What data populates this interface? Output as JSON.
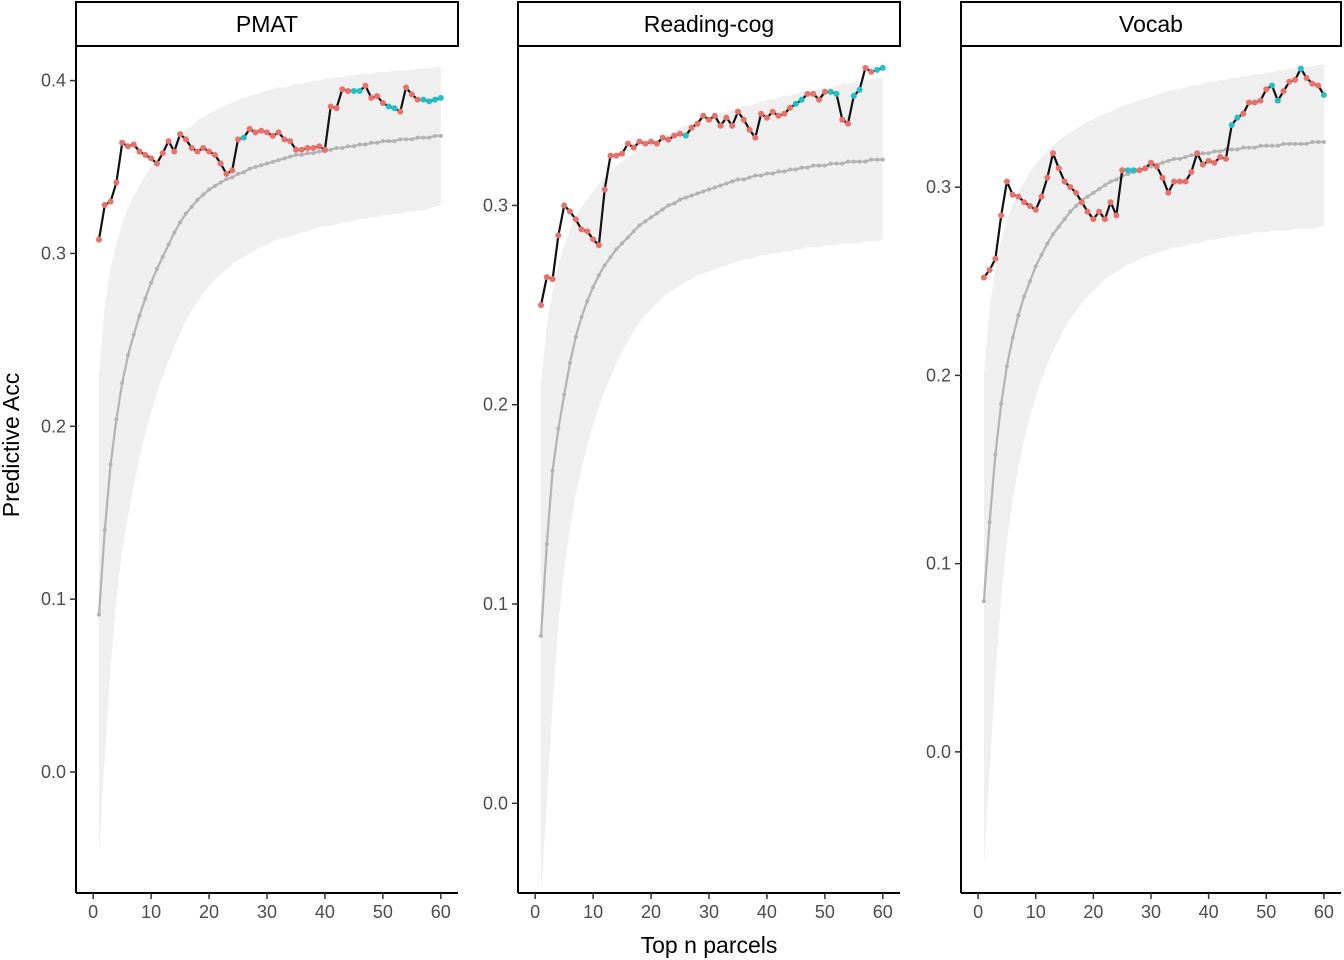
{
  "xlabel": "Top n parcels",
  "ylabel": "Predictive Acc",
  "colors": {
    "observed_line": "#111111",
    "point_a": "#e8716a",
    "point_b": "#22bfc4",
    "null_line": "#b3b3b3",
    "null_band": "#efefef"
  },
  "chart_data": [
    {
      "type": "line",
      "title": "PMAT",
      "xlim": [
        0,
        60
      ],
      "ylim": [
        -0.07,
        0.42
      ],
      "xticks": [
        0,
        10,
        20,
        30,
        40,
        50,
        60
      ],
      "yticks": [
        0.0,
        0.1,
        0.2,
        0.3,
        0.4
      ],
      "x": [
        1,
        2,
        3,
        4,
        5,
        6,
        7,
        8,
        9,
        10,
        11,
        12,
        13,
        14,
        15,
        16,
        17,
        18,
        19,
        20,
        21,
        22,
        23,
        24,
        25,
        26,
        27,
        28,
        29,
        30,
        31,
        32,
        33,
        34,
        35,
        36,
        37,
        38,
        39,
        40,
        41,
        42,
        43,
        44,
        45,
        46,
        47,
        48,
        49,
        50,
        51,
        52,
        53,
        54,
        55,
        56,
        57,
        58,
        59,
        60
      ],
      "observed": [
        0.308,
        0.328,
        0.33,
        0.341,
        0.364,
        0.362,
        0.363,
        0.359,
        0.357,
        0.355,
        0.352,
        0.358,
        0.365,
        0.359,
        0.369,
        0.366,
        0.361,
        0.359,
        0.361,
        0.359,
        0.357,
        0.352,
        0.346,
        0.348,
        0.366,
        0.367,
        0.372,
        0.37,
        0.371,
        0.37,
        0.368,
        0.37,
        0.366,
        0.365,
        0.36,
        0.36,
        0.361,
        0.361,
        0.362,
        0.36,
        0.385,
        0.384,
        0.395,
        0.394,
        0.394,
        0.394,
        0.397,
        0.39,
        0.391,
        0.387,
        0.385,
        0.384,
        0.382,
        0.396,
        0.392,
        0.389,
        0.389,
        0.388,
        0.389,
        0.39
      ],
      "point_group": [
        "a",
        "a",
        "a",
        "a",
        "a",
        "a",
        "a",
        "a",
        "a",
        "a",
        "a",
        "a",
        "a",
        "a",
        "a",
        "a",
        "a",
        "a",
        "a",
        "a",
        "a",
        "a",
        "a",
        "a",
        "a",
        "b",
        "a",
        "a",
        "a",
        "a",
        "a",
        "a",
        "a",
        "a",
        "a",
        "a",
        "a",
        "a",
        "a",
        "a",
        "a",
        "a",
        "a",
        "a",
        "b",
        "b",
        "a",
        "a",
        "a",
        "a",
        "b",
        "b",
        "a",
        "a",
        "a",
        "a",
        "b",
        "b",
        "b",
        "b"
      ],
      "null_mean": [
        0.091,
        0.14,
        0.178,
        0.204,
        0.225,
        0.241,
        0.253,
        0.264,
        0.274,
        0.283,
        0.291,
        0.298,
        0.305,
        0.312,
        0.318,
        0.323,
        0.327,
        0.331,
        0.334,
        0.337,
        0.339,
        0.341,
        0.343,
        0.344,
        0.346,
        0.347,
        0.349,
        0.35,
        0.351,
        0.352,
        0.353,
        0.354,
        0.355,
        0.356,
        0.357,
        0.357,
        0.358,
        0.358,
        0.359,
        0.359,
        0.36,
        0.361,
        0.361,
        0.362,
        0.362,
        0.363,
        0.363,
        0.364,
        0.364,
        0.365,
        0.365,
        0.365,
        0.366,
        0.366,
        0.366,
        0.367,
        0.367,
        0.367,
        0.368,
        0.368
      ],
      "null_upper": [
        0.23,
        0.27,
        0.292,
        0.305,
        0.318,
        0.326,
        0.333,
        0.339,
        0.345,
        0.35,
        0.355,
        0.359,
        0.363,
        0.366,
        0.369,
        0.372,
        0.374,
        0.377,
        0.379,
        0.381,
        0.383,
        0.384,
        0.386,
        0.387,
        0.389,
        0.39,
        0.391,
        0.392,
        0.393,
        0.394,
        0.395,
        0.396,
        0.396,
        0.397,
        0.398,
        0.398,
        0.399,
        0.4,
        0.4,
        0.401,
        0.401,
        0.402,
        0.402,
        0.403,
        0.403,
        0.404,
        0.404,
        0.404,
        0.405,
        0.405,
        0.405,
        0.406,
        0.406,
        0.406,
        0.406,
        0.407,
        0.407,
        0.407,
        0.408,
        0.408
      ],
      "null_lower": [
        -0.048,
        0.01,
        0.06,
        0.1,
        0.128,
        0.148,
        0.165,
        0.182,
        0.196,
        0.208,
        0.219,
        0.229,
        0.238,
        0.246,
        0.254,
        0.261,
        0.267,
        0.272,
        0.277,
        0.281,
        0.285,
        0.288,
        0.291,
        0.294,
        0.296,
        0.298,
        0.3,
        0.302,
        0.304,
        0.305,
        0.307,
        0.308,
        0.309,
        0.31,
        0.311,
        0.312,
        0.313,
        0.314,
        0.315,
        0.316,
        0.316,
        0.317,
        0.318,
        0.318,
        0.319,
        0.32,
        0.32,
        0.321,
        0.321,
        0.322,
        0.322,
        0.323,
        0.323,
        0.324,
        0.324,
        0.325,
        0.325,
        0.326,
        0.327,
        0.328
      ]
    },
    {
      "type": "line",
      "title": "Reading-cog",
      "xlim": [
        0,
        60
      ],
      "ylim": [
        -0.045,
        0.38
      ],
      "xticks": [
        0,
        10,
        20,
        30,
        40,
        50,
        60
      ],
      "yticks": [
        0.0,
        0.1,
        0.2,
        0.3
      ],
      "x": [
        1,
        2,
        3,
        4,
        5,
        6,
        7,
        8,
        9,
        10,
        11,
        12,
        13,
        14,
        15,
        16,
        17,
        18,
        19,
        20,
        21,
        22,
        23,
        24,
        25,
        26,
        27,
        28,
        29,
        30,
        31,
        32,
        33,
        34,
        35,
        36,
        37,
        38,
        39,
        40,
        41,
        42,
        43,
        44,
        45,
        46,
        47,
        48,
        49,
        50,
        51,
        52,
        53,
        54,
        55,
        56,
        57,
        58,
        59,
        60
      ],
      "observed": [
        0.25,
        0.264,
        0.263,
        0.285,
        0.3,
        0.297,
        0.293,
        0.288,
        0.287,
        0.283,
        0.28,
        0.308,
        0.325,
        0.325,
        0.326,
        0.331,
        0.329,
        0.332,
        0.331,
        0.332,
        0.331,
        0.334,
        0.333,
        0.335,
        0.336,
        0.335,
        0.339,
        0.341,
        0.345,
        0.343,
        0.345,
        0.34,
        0.344,
        0.34,
        0.347,
        0.343,
        0.338,
        0.334,
        0.346,
        0.344,
        0.347,
        0.345,
        0.346,
        0.349,
        0.351,
        0.353,
        0.356,
        0.356,
        0.353,
        0.357,
        0.357,
        0.356,
        0.343,
        0.341,
        0.355,
        0.358,
        0.369,
        0.367,
        0.368,
        0.369
      ],
      "point_group": [
        "a",
        "a",
        "a",
        "a",
        "a",
        "a",
        "a",
        "a",
        "a",
        "a",
        "a",
        "a",
        "a",
        "a",
        "a",
        "a",
        "a",
        "a",
        "a",
        "a",
        "a",
        "a",
        "a",
        "a",
        "a",
        "b",
        "a",
        "a",
        "a",
        "a",
        "a",
        "a",
        "a",
        "a",
        "a",
        "a",
        "a",
        "a",
        "a",
        "a",
        "a",
        "a",
        "a",
        "a",
        "b",
        "b",
        "a",
        "a",
        "a",
        "a",
        "b",
        "b",
        "a",
        "a",
        "b",
        "b",
        "a",
        "a",
        "b",
        "b"
      ],
      "null_mean": [
        0.084,
        0.13,
        0.167,
        0.188,
        0.205,
        0.221,
        0.234,
        0.244,
        0.252,
        0.259,
        0.265,
        0.27,
        0.274,
        0.278,
        0.281,
        0.284,
        0.287,
        0.29,
        0.292,
        0.294,
        0.296,
        0.298,
        0.3,
        0.301,
        0.303,
        0.304,
        0.305,
        0.306,
        0.307,
        0.308,
        0.309,
        0.31,
        0.311,
        0.312,
        0.313,
        0.313,
        0.314,
        0.315,
        0.315,
        0.316,
        0.316,
        0.317,
        0.317,
        0.318,
        0.318,
        0.319,
        0.319,
        0.32,
        0.32,
        0.32,
        0.321,
        0.321,
        0.321,
        0.322,
        0.322,
        0.322,
        0.322,
        0.323,
        0.323,
        0.323
      ],
      "null_upper": [
        0.21,
        0.24,
        0.257,
        0.27,
        0.28,
        0.288,
        0.294,
        0.299,
        0.303,
        0.307,
        0.311,
        0.314,
        0.317,
        0.32,
        0.322,
        0.324,
        0.326,
        0.328,
        0.33,
        0.332,
        0.333,
        0.335,
        0.336,
        0.337,
        0.339,
        0.34,
        0.341,
        0.342,
        0.343,
        0.344,
        0.345,
        0.346,
        0.347,
        0.348,
        0.349,
        0.35,
        0.35,
        0.351,
        0.352,
        0.353,
        0.353,
        0.354,
        0.355,
        0.355,
        0.356,
        0.357,
        0.357,
        0.358,
        0.358,
        0.359,
        0.359,
        0.36,
        0.361,
        0.361,
        0.362,
        0.362,
        0.363,
        0.363,
        0.364,
        0.364
      ],
      "null_lower": [
        -0.045,
        0.0,
        0.05,
        0.09,
        0.118,
        0.138,
        0.155,
        0.168,
        0.18,
        0.19,
        0.199,
        0.207,
        0.214,
        0.221,
        0.227,
        0.232,
        0.237,
        0.241,
        0.245,
        0.248,
        0.251,
        0.254,
        0.256,
        0.258,
        0.26,
        0.262,
        0.263,
        0.265,
        0.266,
        0.267,
        0.268,
        0.269,
        0.27,
        0.271,
        0.272,
        0.273,
        0.273,
        0.274,
        0.275,
        0.275,
        0.276,
        0.276,
        0.277,
        0.277,
        0.278,
        0.278,
        0.279,
        0.279,
        0.279,
        0.28,
        0.28,
        0.28,
        0.281,
        0.281,
        0.281,
        0.281,
        0.282,
        0.282,
        0.282,
        0.283
      ]
    },
    {
      "type": "line",
      "title": "Vocab",
      "xlim": [
        0,
        60
      ],
      "ylim": [
        -0.075,
        0.375
      ],
      "xticks": [
        0,
        10,
        20,
        30,
        40,
        50,
        60
      ],
      "yticks": [
        0.0,
        0.1,
        0.2,
        0.3
      ],
      "x": [
        1,
        2,
        3,
        4,
        5,
        6,
        7,
        8,
        9,
        10,
        11,
        12,
        13,
        14,
        15,
        16,
        17,
        18,
        19,
        20,
        21,
        22,
        23,
        24,
        25,
        26,
        27,
        28,
        29,
        30,
        31,
        32,
        33,
        34,
        35,
        36,
        37,
        38,
        39,
        40,
        41,
        42,
        43,
        44,
        45,
        46,
        47,
        48,
        49,
        50,
        51,
        52,
        53,
        54,
        55,
        56,
        57,
        58,
        59,
        60
      ],
      "observed": [
        0.252,
        0.256,
        0.262,
        0.285,
        0.303,
        0.296,
        0.295,
        0.292,
        0.29,
        0.288,
        0.295,
        0.305,
        0.318,
        0.31,
        0.303,
        0.3,
        0.297,
        0.292,
        0.287,
        0.283,
        0.287,
        0.283,
        0.292,
        0.285,
        0.309,
        0.309,
        0.309,
        0.309,
        0.31,
        0.313,
        0.311,
        0.305,
        0.297,
        0.303,
        0.303,
        0.303,
        0.308,
        0.318,
        0.312,
        0.314,
        0.313,
        0.316,
        0.315,
        0.333,
        0.337,
        0.339,
        0.345,
        0.345,
        0.346,
        0.352,
        0.354,
        0.346,
        0.351,
        0.356,
        0.357,
        0.363,
        0.358,
        0.355,
        0.354,
        0.349
      ],
      "point_group": [
        "a",
        "a",
        "a",
        "a",
        "a",
        "a",
        "a",
        "a",
        "a",
        "a",
        "a",
        "a",
        "a",
        "a",
        "a",
        "a",
        "a",
        "a",
        "a",
        "a",
        "a",
        "a",
        "a",
        "a",
        "a",
        "b",
        "b",
        "a",
        "a",
        "a",
        "a",
        "a",
        "a",
        "a",
        "a",
        "a",
        "a",
        "a",
        "a",
        "a",
        "a",
        "a",
        "a",
        "b",
        "b",
        "a",
        "a",
        "a",
        "a",
        "a",
        "b",
        "b",
        "a",
        "a",
        "a",
        "b",
        "a",
        "a",
        "a",
        "b"
      ],
      "null_mean": [
        0.08,
        0.122,
        0.158,
        0.185,
        0.205,
        0.22,
        0.232,
        0.242,
        0.25,
        0.258,
        0.264,
        0.27,
        0.275,
        0.279,
        0.283,
        0.287,
        0.29,
        0.293,
        0.295,
        0.297,
        0.299,
        0.301,
        0.303,
        0.304,
        0.306,
        0.307,
        0.308,
        0.309,
        0.31,
        0.311,
        0.312,
        0.313,
        0.314,
        0.315,
        0.315,
        0.316,
        0.317,
        0.317,
        0.318,
        0.318,
        0.319,
        0.319,
        0.32,
        0.32,
        0.32,
        0.321,
        0.321,
        0.321,
        0.322,
        0.322,
        0.322,
        0.322,
        0.323,
        0.323,
        0.323,
        0.323,
        0.323,
        0.324,
        0.324,
        0.324
      ],
      "null_upper": [
        0.2,
        0.236,
        0.257,
        0.272,
        0.283,
        0.291,
        0.297,
        0.303,
        0.308,
        0.312,
        0.316,
        0.319,
        0.322,
        0.325,
        0.327,
        0.329,
        0.331,
        0.333,
        0.335,
        0.336,
        0.338,
        0.339,
        0.34,
        0.342,
        0.343,
        0.344,
        0.345,
        0.346,
        0.347,
        0.348,
        0.349,
        0.35,
        0.351,
        0.352,
        0.352,
        0.353,
        0.354,
        0.354,
        0.355,
        0.356,
        0.356,
        0.357,
        0.357,
        0.358,
        0.358,
        0.359,
        0.359,
        0.36,
        0.36,
        0.361,
        0.361,
        0.362,
        0.362,
        0.363,
        0.363,
        0.364,
        0.364,
        0.364,
        0.365,
        0.365
      ],
      "null_lower": [
        -0.06,
        -0.01,
        0.04,
        0.082,
        0.112,
        0.134,
        0.151,
        0.166,
        0.178,
        0.189,
        0.198,
        0.206,
        0.213,
        0.219,
        0.225,
        0.23,
        0.234,
        0.238,
        0.242,
        0.245,
        0.248,
        0.251,
        0.253,
        0.255,
        0.257,
        0.259,
        0.26,
        0.262,
        0.263,
        0.264,
        0.265,
        0.266,
        0.267,
        0.268,
        0.268,
        0.269,
        0.27,
        0.27,
        0.271,
        0.272,
        0.272,
        0.273,
        0.273,
        0.274,
        0.274,
        0.275,
        0.275,
        0.276,
        0.276,
        0.276,
        0.277,
        0.277,
        0.277,
        0.277,
        0.278,
        0.278,
        0.278,
        0.278,
        0.279,
        0.279
      ]
    }
  ]
}
